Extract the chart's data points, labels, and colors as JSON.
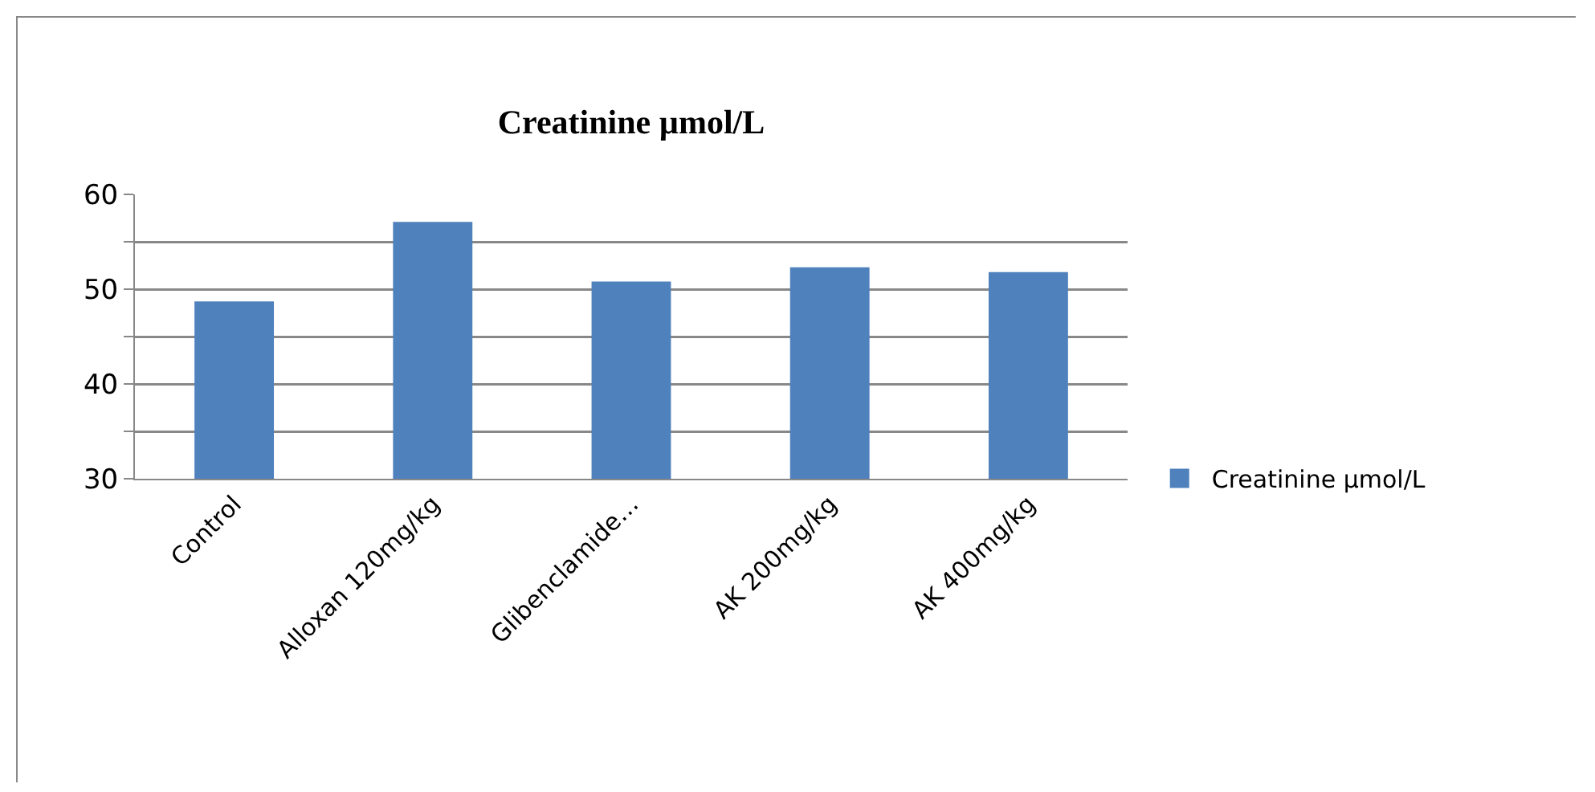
{
  "chart_data": {
    "type": "bar",
    "title": "Creatinine µmol/L",
    "categories": [
      "Control",
      "Alloxan 120mg/kg",
      "Glibenclamide…",
      "AK 200mg/kg",
      "AK 400mg/kg"
    ],
    "series": [
      {
        "name": "Creatinine µmol/L",
        "color": "#4f81bd",
        "values": [
          48.7,
          57.1,
          50.8,
          52.3,
          51.8
        ]
      }
    ],
    "ylim": [
      30,
      60
    ],
    "yticks": [
      {
        "value": 30,
        "label": "30"
      },
      {
        "value": 35,
        "label": null
      },
      {
        "value": 40,
        "label": "40"
      },
      {
        "value": 45,
        "label": null
      },
      {
        "value": 50,
        "label": "50"
      },
      {
        "value": 55,
        "label": null
      },
      {
        "value": 60,
        "label": "60"
      }
    ],
    "grid": "y",
    "legend": "right"
  }
}
